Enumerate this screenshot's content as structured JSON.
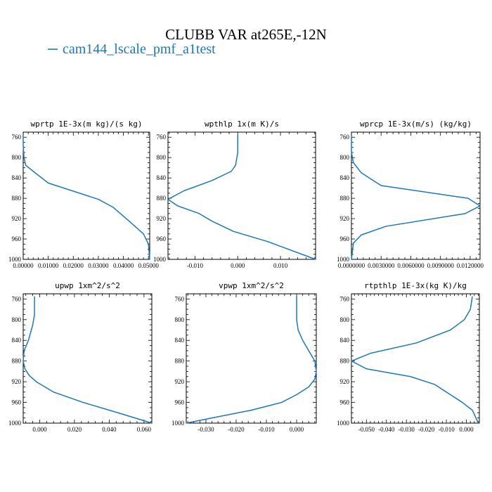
{
  "figure": {
    "title": "CLUBB VAR at265E,-12N",
    "legend": "cam144_lscale_pmf_a1test",
    "colors": {
      "series": "#1f77b4"
    }
  },
  "chart_data": [
    {
      "type": "line",
      "title": "wprtp  1E-3x(m kg)/(s kg)",
      "xlim": [
        0.0,
        0.0505
      ],
      "ylim": [
        750,
        1000
      ],
      "y_inverted": true,
      "x_ticks": [
        0.0,
        0.01,
        0.02,
        0.03,
        0.04,
        0.05
      ],
      "x_tick_labels": [
        "0.00000",
        "0.01000",
        "0.02000",
        "0.03000",
        "0.04000",
        "0.05000"
      ],
      "y_ticks": [
        760,
        800,
        840,
        880,
        920,
        960,
        1000
      ],
      "y_tick_labels": [
        "760",
        "800",
        "840",
        "880",
        "920",
        "960",
        "1000"
      ],
      "series": [
        {
          "x": [
            0.0,
            0.0,
            0.0003,
            0.001,
            0.004,
            0.01,
            0.03,
            0.036,
            0.043,
            0.048,
            0.05,
            0.0505
          ],
          "y": [
            755,
            775,
            800,
            815,
            827,
            850,
            882,
            898,
            928,
            950,
            970,
            1000
          ]
        }
      ]
    },
    {
      "type": "line",
      "title": "wpthlp  1x(m K)/s",
      "xlim": [
        -0.0163,
        0.0182
      ],
      "ylim": [
        750,
        1000
      ],
      "y_inverted": true,
      "x_ticks": [
        -0.01,
        0.0,
        0.01
      ],
      "x_tick_labels": [
        "-0.010",
        "0.000",
        "0.010"
      ],
      "y_ticks": [
        760,
        800,
        840,
        880,
        920,
        960,
        1000
      ],
      "y_tick_labels": [
        "760",
        "800",
        "840",
        "880",
        "920",
        "960",
        "1000"
      ],
      "series": [
        {
          "x": [
            0.0,
            0.0,
            -0.0005,
            -0.0015,
            -0.006,
            -0.0125,
            -0.0163,
            -0.014,
            -0.009,
            -0.006,
            -0.001,
            0.007,
            0.0182
          ],
          "y": [
            755,
            790,
            815,
            827,
            845,
            865,
            882,
            895,
            910,
            925,
            945,
            965,
            1000
          ]
        }
      ]
    },
    {
      "type": "line",
      "title": "wprcp  1E-3x(m/s) (kg/kg)",
      "xlim": [
        0.0,
        0.013
      ],
      "ylim": [
        750,
        1000
      ],
      "y_inverted": true,
      "x_ticks": [
        0.0,
        0.003,
        0.006,
        0.009,
        0.012
      ],
      "x_tick_labels": [
        "0.0000000",
        "0.0030000",
        "0.0060000",
        "0.0090000",
        "0.0120000"
      ],
      "y_ticks": [
        760,
        800,
        840,
        880,
        920,
        960,
        1000
      ],
      "y_tick_labels": [
        "760",
        "800",
        "840",
        "880",
        "920",
        "960",
        "1000"
      ],
      "series": [
        {
          "x": [
            0.0,
            0.0,
            0.0002,
            0.001,
            0.003,
            0.0118,
            0.013,
            0.0115,
            0.0035,
            0.001,
            0.0002,
            0.0
          ],
          "y": [
            755,
            790,
            810,
            830,
            855,
            880,
            895,
            910,
            935,
            952,
            968,
            1000
          ]
        }
      ]
    },
    {
      "type": "line",
      "title": "upwp  1xm^2/s^2",
      "xlim": [
        -0.0095,
        0.0645
      ],
      "ylim": [
        750,
        1000
      ],
      "y_inverted": true,
      "x_ticks": [
        0.0,
        0.02,
        0.04,
        0.06
      ],
      "x_tick_labels": [
        "0.000",
        "0.020",
        "0.040",
        "0.060"
      ],
      "y_ticks": [
        760,
        800,
        840,
        880,
        920,
        960,
        1000
      ],
      "y_tick_labels": [
        "760",
        "800",
        "840",
        "880",
        "920",
        "960",
        "1000"
      ],
      "series": [
        {
          "x": [
            -0.003,
            -0.003,
            -0.004,
            -0.0065,
            -0.009,
            -0.0095,
            -0.0085,
            -0.006,
            -0.002,
            0.008,
            0.025,
            0.045,
            0.0645
          ],
          "y": [
            755,
            790,
            810,
            840,
            860,
            880,
            895,
            908,
            920,
            940,
            960,
            980,
            1000
          ]
        }
      ]
    },
    {
      "type": "line",
      "title": "vpwp  1xm^2/s^2",
      "xlim": [
        -0.0365,
        0.0065
      ],
      "ylim": [
        750,
        1000
      ],
      "y_inverted": true,
      "x_ticks": [
        -0.03,
        -0.02,
        -0.01,
        0.0
      ],
      "x_tick_labels": [
        "-0.030",
        "-0.020",
        "-0.010",
        "0.000"
      ],
      "y_ticks": [
        760,
        800,
        840,
        880,
        920,
        960,
        1000
      ],
      "y_tick_labels": [
        "760",
        "800",
        "840",
        "880",
        "920",
        "960",
        "1000"
      ],
      "series": [
        {
          "x": [
            0.0,
            0.0,
            0.0005,
            0.002,
            0.004,
            0.006,
            0.0065,
            0.006,
            0.004,
            0.0,
            -0.005,
            -0.015,
            -0.028,
            -0.0365
          ],
          "y": [
            755,
            800,
            820,
            840,
            860,
            880,
            900,
            915,
            930,
            945,
            960,
            975,
            990,
            1000
          ]
        }
      ]
    },
    {
      "type": "line",
      "title": "rtpthlp  1E-3x(kg K)/kg",
      "xlim": [
        -0.0575,
        0.0065
      ],
      "ylim": [
        750,
        1000
      ],
      "y_inverted": true,
      "x_ticks": [
        -0.05,
        -0.04,
        -0.03,
        -0.02,
        -0.01,
        0.0
      ],
      "x_tick_labels": [
        "-0.050",
        "-0.040",
        "-0.030",
        "-0.020",
        "-0.010",
        "0.000"
      ],
      "y_ticks": [
        760,
        800,
        840,
        880,
        920,
        960,
        1000
      ],
      "y_tick_labels": [
        "760",
        "800",
        "840",
        "880",
        "920",
        "960",
        "1000"
      ],
      "series": [
        {
          "x": [
            0.003,
            0.002,
            -0.001,
            -0.008,
            -0.025,
            -0.048,
            -0.0575,
            -0.05,
            -0.028,
            -0.016,
            -0.008,
            -0.002,
            0.003,
            0.006
          ],
          "y": [
            755,
            780,
            800,
            820,
            845,
            865,
            880,
            895,
            910,
            925,
            945,
            960,
            975,
            1000
          ]
        }
      ]
    }
  ]
}
